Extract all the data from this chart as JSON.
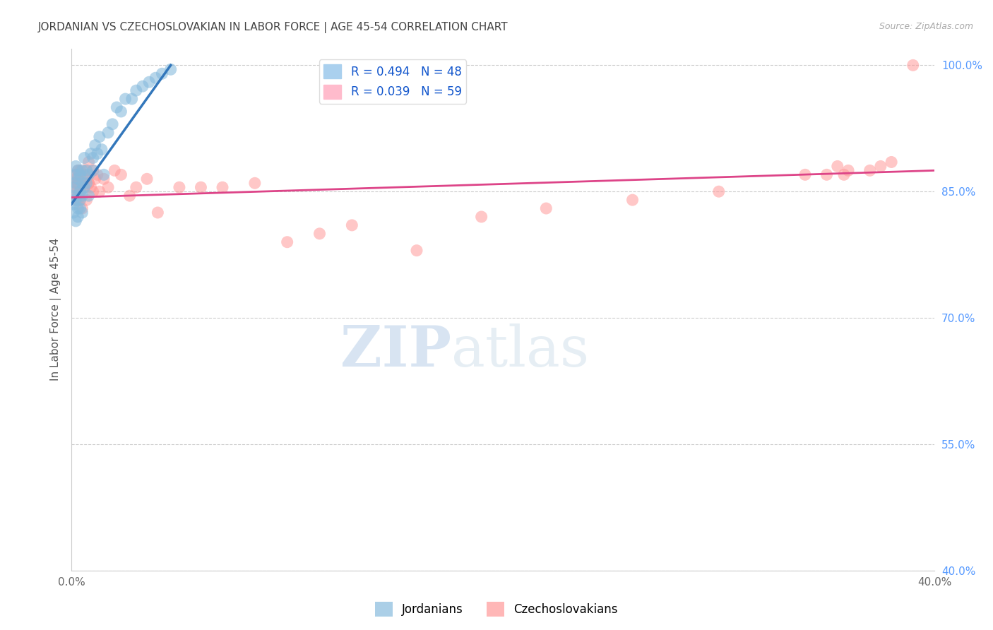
{
  "title": "JORDANIAN VS CZECHOSLOVAKIAN IN LABOR FORCE | AGE 45-54 CORRELATION CHART",
  "source": "Source: ZipAtlas.com",
  "ylabel": "In Labor Force | Age 45-54",
  "xlim": [
    0.0,
    0.4
  ],
  "ylim": [
    0.4,
    1.02
  ],
  "xticks": [
    0.0,
    0.05,
    0.1,
    0.15,
    0.2,
    0.25,
    0.3,
    0.35,
    0.4
  ],
  "xticklabels": [
    "0.0%",
    "",
    "",
    "",
    "",
    "",
    "",
    "",
    "40.0%"
  ],
  "yticks_right": [
    0.4,
    0.55,
    0.7,
    0.85,
    1.0
  ],
  "yticklabels_right": [
    "40.0%",
    "55.0%",
    "70.0%",
    "85.0%",
    "100.0%"
  ],
  "blue_color": "#88bbdd",
  "pink_color": "#ff9999",
  "blue_line_color": "#3377bb",
  "pink_line_color": "#dd4488",
  "watermark_zip": "ZIP",
  "watermark_atlas": "atlas",
  "background_color": "#ffffff",
  "grid_color": "#cccccc",
  "jordanians_label": "Jordanians",
  "czechoslovakians_label": "Czechoslovakians",
  "title_color": "#444444",
  "axis_label_color": "#555555",
  "right_tick_color": "#5599ff",
  "jordanians_x": [
    0.001,
    0.001,
    0.001,
    0.001,
    0.002,
    0.002,
    0.002,
    0.002,
    0.002,
    0.003,
    0.003,
    0.003,
    0.003,
    0.003,
    0.004,
    0.004,
    0.004,
    0.004,
    0.005,
    0.005,
    0.005,
    0.005,
    0.006,
    0.006,
    0.007,
    0.007,
    0.008,
    0.008,
    0.009,
    0.01,
    0.01,
    0.011,
    0.012,
    0.013,
    0.014,
    0.015,
    0.017,
    0.019,
    0.021,
    0.023,
    0.025,
    0.028,
    0.03,
    0.033,
    0.036,
    0.039,
    0.042,
    0.046
  ],
  "jordanians_y": [
    0.845,
    0.855,
    0.825,
    0.835,
    0.87,
    0.84,
    0.815,
    0.86,
    0.88,
    0.83,
    0.845,
    0.865,
    0.875,
    0.82,
    0.85,
    0.84,
    0.87,
    0.83,
    0.86,
    0.875,
    0.825,
    0.845,
    0.89,
    0.855,
    0.875,
    0.86,
    0.87,
    0.845,
    0.895,
    0.89,
    0.875,
    0.905,
    0.895,
    0.915,
    0.9,
    0.87,
    0.92,
    0.93,
    0.95,
    0.945,
    0.96,
    0.96,
    0.97,
    0.975,
    0.98,
    0.985,
    0.99,
    0.995
  ],
  "czechoslovakians_x": [
    0.001,
    0.001,
    0.002,
    0.002,
    0.002,
    0.002,
    0.003,
    0.003,
    0.003,
    0.003,
    0.004,
    0.004,
    0.004,
    0.004,
    0.005,
    0.005,
    0.006,
    0.006,
    0.007,
    0.007,
    0.007,
    0.008,
    0.008,
    0.008,
    0.009,
    0.01,
    0.01,
    0.011,
    0.012,
    0.013,
    0.015,
    0.017,
    0.02,
    0.023,
    0.027,
    0.03,
    0.035,
    0.04,
    0.05,
    0.06,
    0.07,
    0.085,
    0.1,
    0.115,
    0.13,
    0.16,
    0.19,
    0.22,
    0.26,
    0.3,
    0.34,
    0.35,
    0.355,
    0.358,
    0.36,
    0.37,
    0.375,
    0.38,
    0.39
  ],
  "czechoslovakians_y": [
    0.85,
    0.86,
    0.87,
    0.855,
    0.84,
    0.865,
    0.845,
    0.86,
    0.875,
    0.84,
    0.85,
    0.865,
    0.875,
    0.84,
    0.86,
    0.83,
    0.87,
    0.855,
    0.865,
    0.875,
    0.84,
    0.86,
    0.885,
    0.86,
    0.855,
    0.85,
    0.875,
    0.865,
    0.87,
    0.85,
    0.865,
    0.855,
    0.875,
    0.87,
    0.845,
    0.855,
    0.865,
    0.825,
    0.855,
    0.855,
    0.855,
    0.86,
    0.79,
    0.8,
    0.81,
    0.78,
    0.82,
    0.83,
    0.84,
    0.85,
    0.87,
    0.87,
    0.88,
    0.87,
    0.875,
    0.875,
    0.88,
    0.885,
    1.0
  ],
  "jordan_line_x": [
    0.0,
    0.046
  ],
  "jordan_line_y": [
    0.835,
    1.0
  ],
  "czech_line_x": [
    0.0,
    0.4
  ],
  "czech_line_y": [
    0.843,
    0.875
  ]
}
